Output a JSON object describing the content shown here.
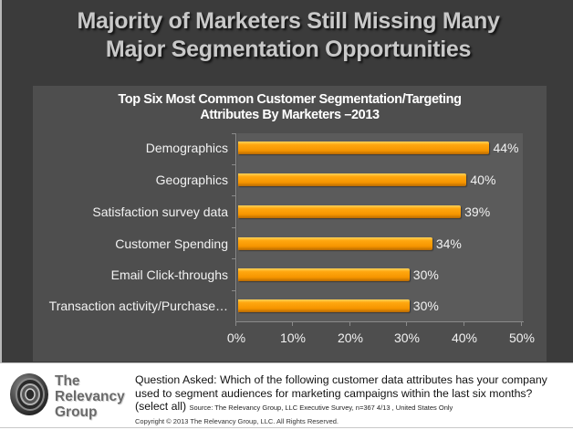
{
  "slide": {
    "title_line1": "Majority of Marketers Still Missing Many",
    "title_line2": "Major Segmentation  Opportunities"
  },
  "chart_data": {
    "type": "bar",
    "orientation": "horizontal",
    "title": "Top Six Most Common Customer Segmentation/Targeting Attributes By Marketers –2013",
    "title_line1": "Top Six Most Common Customer Segmentation/Targeting",
    "title_line2": "Attributes By Marketers –2013",
    "categories": [
      "Demographics",
      "Geographics",
      "Satisfaction survey data",
      "Customer Spending",
      "Email Click-throughs",
      "Transaction activity/Purchase…"
    ],
    "values": [
      44,
      40,
      39,
      34,
      30,
      30
    ],
    "value_labels": [
      "44%",
      "40%",
      "39%",
      "34%",
      "30%",
      "30%"
    ],
    "xlabel": "",
    "ylabel": "",
    "xlim": [
      0,
      50
    ],
    "x_ticks": [
      "0%",
      "10%",
      "20%",
      "30%",
      "40%",
      "50%"
    ],
    "bar_color": "#f69500",
    "grid": false,
    "legend": null
  },
  "footer": {
    "logo_line1": "The",
    "logo_line2": "Relevancy",
    "logo_line3": "Group",
    "question": "Question Asked:  Which of the following customer data attributes has your company used to segment audiences for marketing campaigns within the last six months? (select all)",
    "source": "Source: The Relevancy Group, LLC Executive Survey, n=367 4/13 , United States Only",
    "copyright": "Copyright © 2013  The Relevancy Group, LLC.  All Rights Reserved."
  }
}
